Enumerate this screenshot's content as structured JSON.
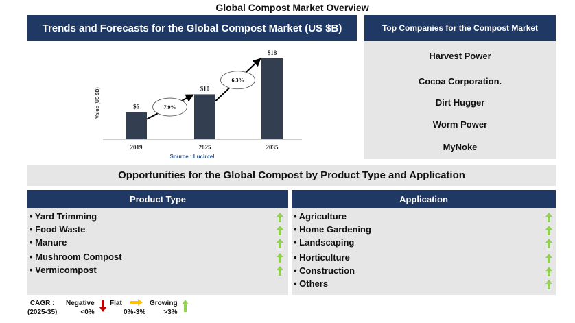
{
  "title": "Global Compost Market Overview",
  "chart_panel": {
    "header": "Trends and Forecasts for the Global Compost Market (US $B)"
  },
  "chart_data": {
    "type": "bar",
    "title": "Trends and Forecasts for the Global Compost Market (US $B)",
    "categories": [
      "2019",
      "2025",
      "2035"
    ],
    "values": [
      6,
      10,
      18
    ],
    "labels": [
      "$6",
      "$10",
      "$18"
    ],
    "ylabel": "Value (US $B)",
    "xlabel": "",
    "ylim": [
      0,
      18
    ],
    "cagr_annotations": [
      {
        "from": "2019",
        "to": "2025",
        "label": "7.9%"
      },
      {
        "from": "2025",
        "to": "2035",
        "label": "6.3%"
      }
    ],
    "source": "Source : Lucintel",
    "colors": {
      "bar": "#333f50"
    }
  },
  "companies": {
    "header": "Top Companies for the Compost Market",
    "items": [
      "Harvest Power",
      "Cocoa Corporation.",
      "Dirt Hugger",
      "Worm Power",
      "MyNoke"
    ]
  },
  "opportunities": {
    "header": "Opportunities for the Global Compost by Product Type and Application",
    "product_type": {
      "header": "Product Type",
      "items": [
        "• Yard Trimming",
        "• Food Waste",
        "• Manure",
        "• Mushroom Compost",
        "• Vermicompost"
      ]
    },
    "application": {
      "header": "Application",
      "items": [
        "• Agriculture",
        "• Home Gardening",
        "• Landscaping",
        "• Horticulture",
        "• Construction",
        "• Others"
      ]
    }
  },
  "legend": {
    "cagr": "CAGR :",
    "period": "(2025-35)",
    "negative": "Negative",
    "negative_range": "<0%",
    "flat": "Flat",
    "flat_range": "0%-3%",
    "growing": "Growing",
    "growing_range": ">3%",
    "colors": {
      "negative": "#c00000",
      "flat": "#ffc000",
      "growing": "#92d050"
    }
  }
}
